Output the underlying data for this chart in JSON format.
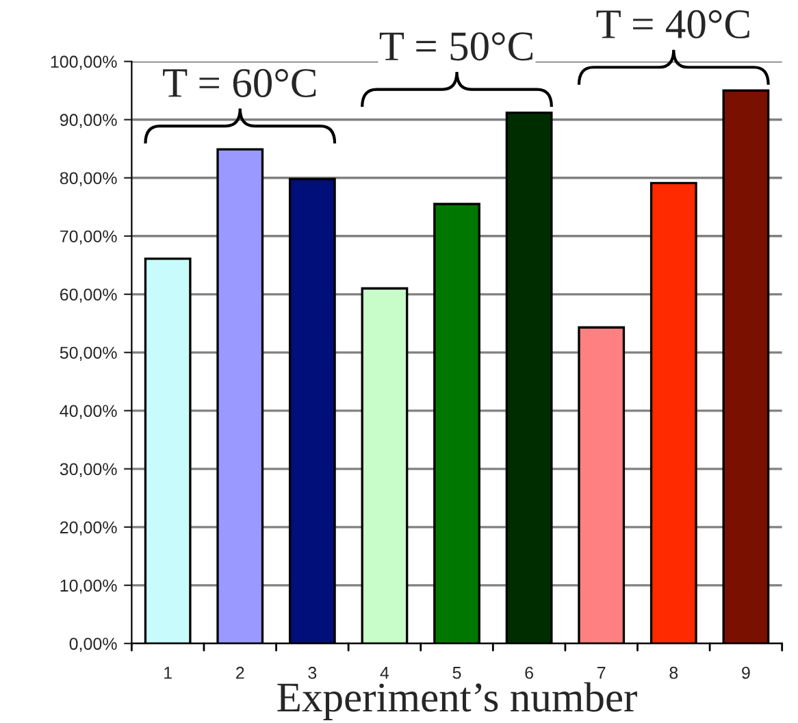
{
  "chart_data": {
    "type": "bar",
    "xlabel": "Experiment’s number",
    "categories": [
      "1",
      "2",
      "3",
      "4",
      "5",
      "6",
      "7",
      "8",
      "9"
    ],
    "values": [
      66.1,
      84.9,
      79.8,
      61.0,
      75.5,
      91.2,
      54.3,
      79.1,
      95.0
    ],
    "colors": [
      "#c8fcfc",
      "#9999ff",
      "#000f7a",
      "#c8fcc8",
      "#007800",
      "#002d00",
      "#ff8080",
      "#ff2a00",
      "#7a1000"
    ],
    "ylim": [
      0,
      100
    ],
    "yticks": [
      {
        "value": 0,
        "label": "0,00%"
      },
      {
        "value": 10,
        "label": "10,00%"
      },
      {
        "value": 20,
        "label": "20,00%"
      },
      {
        "value": 30,
        "label": "30,00%"
      },
      {
        "value": 40,
        "label": "40,00%"
      },
      {
        "value": 50,
        "label": "50,00%"
      },
      {
        "value": 60,
        "label": "60,00%"
      },
      {
        "value": 70,
        "label": "70,00%"
      },
      {
        "value": 80,
        "label": "80,00%"
      },
      {
        "value": 90,
        "label": "90,00%"
      },
      {
        "value": 100,
        "label": "100,00%"
      }
    ],
    "grid": "y",
    "annotations": [
      "T = 60°C",
      "T = 50°C",
      "T = 40°C"
    ]
  }
}
